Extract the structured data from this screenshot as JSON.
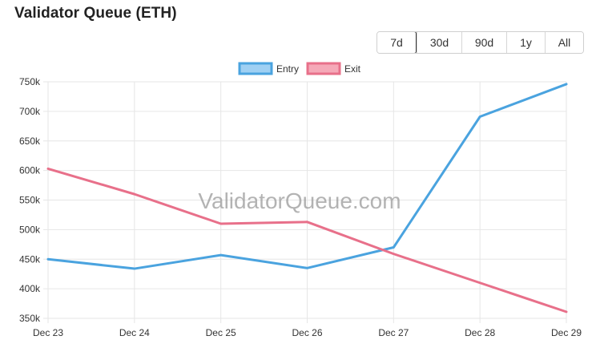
{
  "header": {
    "title": "Validator Queue (ETH)"
  },
  "range_buttons": [
    {
      "label": "7d",
      "active": true
    },
    {
      "label": "30d",
      "active": false
    },
    {
      "label": "90d",
      "active": false
    },
    {
      "label": "1y",
      "active": false
    },
    {
      "label": "All",
      "active": false
    }
  ],
  "watermark": "ValidatorQueue.com",
  "chart_data": {
    "type": "line",
    "categories": [
      "Dec 23",
      "Dec 24",
      "Dec 25",
      "Dec 26",
      "Dec 27",
      "Dec 28",
      "Dec 29"
    ],
    "ylim": [
      350000,
      750000
    ],
    "y_ticks": [
      {
        "value": 750000,
        "label": "750k"
      },
      {
        "value": 700000,
        "label": "700k"
      },
      {
        "value": 650000,
        "label": "650k"
      },
      {
        "value": 600000,
        "label": "600k"
      },
      {
        "value": 550000,
        "label": "550k"
      },
      {
        "value": 500000,
        "label": "500k"
      },
      {
        "value": 450000,
        "label": "450k"
      },
      {
        "value": 400000,
        "label": "400k"
      },
      {
        "value": 350000,
        "label": "350k"
      }
    ],
    "grid": true,
    "legend_position": "top-center",
    "series": [
      {
        "name": "Entry",
        "color": "#4aa3df",
        "fill": "#9fd0f3",
        "values": [
          450000,
          434000,
          457000,
          435000,
          470000,
          691000,
          746000
        ]
      },
      {
        "name": "Exit",
        "color": "#e8708a",
        "fill": "#f5a9b8",
        "values": [
          603000,
          560000,
          510000,
          513000,
          459000,
          410000,
          361000
        ]
      }
    ]
  }
}
